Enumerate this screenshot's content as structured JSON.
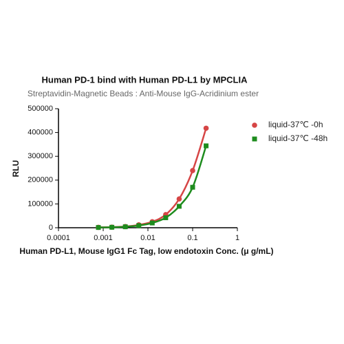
{
  "chart_data": {
    "type": "scatter",
    "title": "Human PD-1 bind with Human PD-L1 by MPCLIA",
    "subtitle": "Streptavidin-Magnetic Beads : Anti-Mouse IgG-Acridinium ester",
    "x_label": "Human PD-L1, Mouse IgG1 Fc Tag, low endotoxin Conc. (μ g/mL)",
    "y_label": "RLU",
    "x": [
      0.00078,
      0.0015625,
      0.003125,
      0.00625,
      0.0125,
      0.025,
      0.05,
      0.1,
      0.2
    ],
    "series": [
      {
        "name": "liquid-37℃ -0h",
        "color": "#d64545",
        "marker": "circle",
        "values": [
          1500,
          2500,
          5000,
          12000,
          25000,
          55000,
          121000,
          240000,
          418000
        ]
      },
      {
        "name": "liquid-37℃ -48h",
        "color": "#1e8c1e",
        "marker": "square",
        "values": [
          1000,
          2000,
          4000,
          9000,
          20000,
          42000,
          90000,
          170000,
          344000
        ]
      }
    ],
    "xscale": "log",
    "xlim": [
      0.0001,
      1
    ],
    "xticks": [
      0.0001,
      0.001,
      0.01,
      0.1,
      1
    ],
    "ylim": [
      0,
      500000
    ],
    "yticks": [
      0,
      100000,
      200000,
      300000,
      400000,
      500000
    ],
    "legend": "right"
  }
}
